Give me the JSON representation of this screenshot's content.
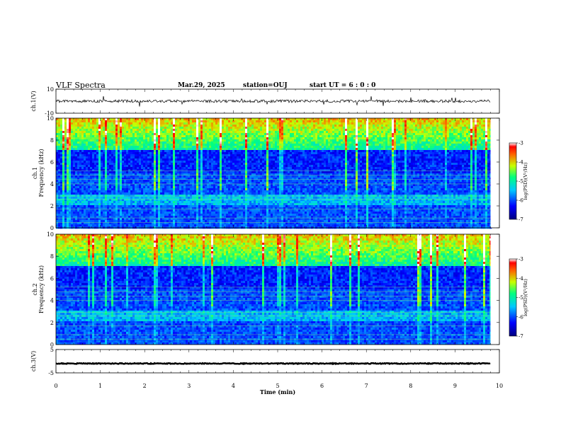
{
  "header": {
    "title": "VLF Spectra",
    "date": "Mar.29, 2025",
    "station": "station=OUJ",
    "start": "start UT =  6 : 0  : 0"
  },
  "chart_data": [
    {
      "type": "line",
      "panel": "ch1-waveform",
      "ylabel": "ch.1(V)",
      "ylim": [
        -10,
        10
      ],
      "yticks": [
        10,
        -10
      ],
      "baseline": 0,
      "xlim": [
        0,
        10
      ]
    },
    {
      "type": "heatmap",
      "panel": "ch1-spectrogram",
      "ylabel_lines": [
        "ch.1",
        "Frequency (kHz)"
      ],
      "ylim": [
        0,
        10
      ],
      "yticks": [
        0,
        2,
        4,
        6,
        8,
        10
      ],
      "xlim": [
        0,
        10
      ],
      "data_end_min": 9.8,
      "colorbar": {
        "label": "log(PSD)(V²/Hz)",
        "range": [
          -7,
          -3
        ],
        "ticks": [
          -3,
          -4,
          -5,
          -6,
          -7
        ]
      }
    },
    {
      "type": "heatmap",
      "panel": "ch2-spectrogram",
      "ylabel_lines": [
        "ch.2",
        "Frequency (kHz)"
      ],
      "ylim": [
        0,
        10
      ],
      "yticks": [
        0,
        2,
        4,
        6,
        8,
        10
      ],
      "xlim": [
        0,
        10
      ],
      "data_end_min": 9.8,
      "colorbar": {
        "label": "log(PSD)(V²/Hz)",
        "range": [
          -7,
          -3
        ],
        "ticks": [
          -3,
          -4,
          -5,
          -6,
          -7
        ]
      }
    },
    {
      "type": "line",
      "panel": "ch3-waveform",
      "ylabel": "ch.3(V)",
      "ylim": [
        -5,
        5
      ],
      "yticks": [
        5,
        -5
      ],
      "baseline": -1,
      "xlim": [
        0,
        10
      ],
      "xticks": [
        0,
        1,
        2,
        3,
        4,
        5,
        6,
        7,
        8,
        9,
        10
      ],
      "xlabel": "Time (min)"
    }
  ]
}
